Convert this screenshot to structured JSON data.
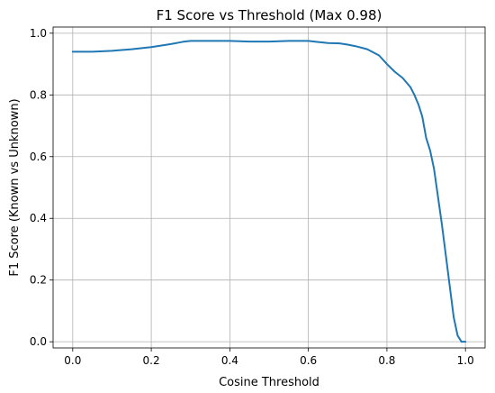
{
  "chart_data": {
    "type": "line",
    "title": "F1 Score vs Threshold (Max 0.98)",
    "xlabel": "Cosine Threshold",
    "ylabel": "F1 Score (Known vs Unknown)",
    "xlim": [
      -0.05,
      1.05
    ],
    "ylim": [
      -0.02,
      1.02
    ],
    "xticks": [
      0.0,
      0.2,
      0.4,
      0.6,
      0.8,
      1.0
    ],
    "xtick_labels": [
      "0.0",
      "0.2",
      "0.4",
      "0.6",
      "0.8",
      "1.0"
    ],
    "yticks": [
      0.0,
      0.2,
      0.4,
      0.6,
      0.8,
      1.0
    ],
    "ytick_labels": [
      "0.0",
      "0.2",
      "0.4",
      "0.6",
      "0.8",
      "1.0"
    ],
    "grid": true,
    "series": [
      {
        "color": "#1f77b4",
        "x": [
          0.0,
          0.05,
          0.1,
          0.15,
          0.2,
          0.25,
          0.28,
          0.3,
          0.33,
          0.35,
          0.4,
          0.45,
          0.5,
          0.55,
          0.6,
          0.62,
          0.65,
          0.68,
          0.7,
          0.72,
          0.75,
          0.78,
          0.8,
          0.82,
          0.84,
          0.86,
          0.87,
          0.88,
          0.89,
          0.9,
          0.91,
          0.92,
          0.93,
          0.94,
          0.95,
          0.96,
          0.97,
          0.98,
          0.99,
          1.0
        ],
        "y": [
          0.94,
          0.94,
          0.943,
          0.948,
          0.955,
          0.965,
          0.972,
          0.975,
          0.975,
          0.975,
          0.975,
          0.973,
          0.973,
          0.975,
          0.975,
          0.972,
          0.968,
          0.967,
          0.963,
          0.958,
          0.948,
          0.928,
          0.9,
          0.875,
          0.855,
          0.825,
          0.8,
          0.77,
          0.73,
          0.66,
          0.62,
          0.56,
          0.47,
          0.38,
          0.28,
          0.18,
          0.08,
          0.02,
          0.0,
          0.0
        ]
      }
    ]
  }
}
